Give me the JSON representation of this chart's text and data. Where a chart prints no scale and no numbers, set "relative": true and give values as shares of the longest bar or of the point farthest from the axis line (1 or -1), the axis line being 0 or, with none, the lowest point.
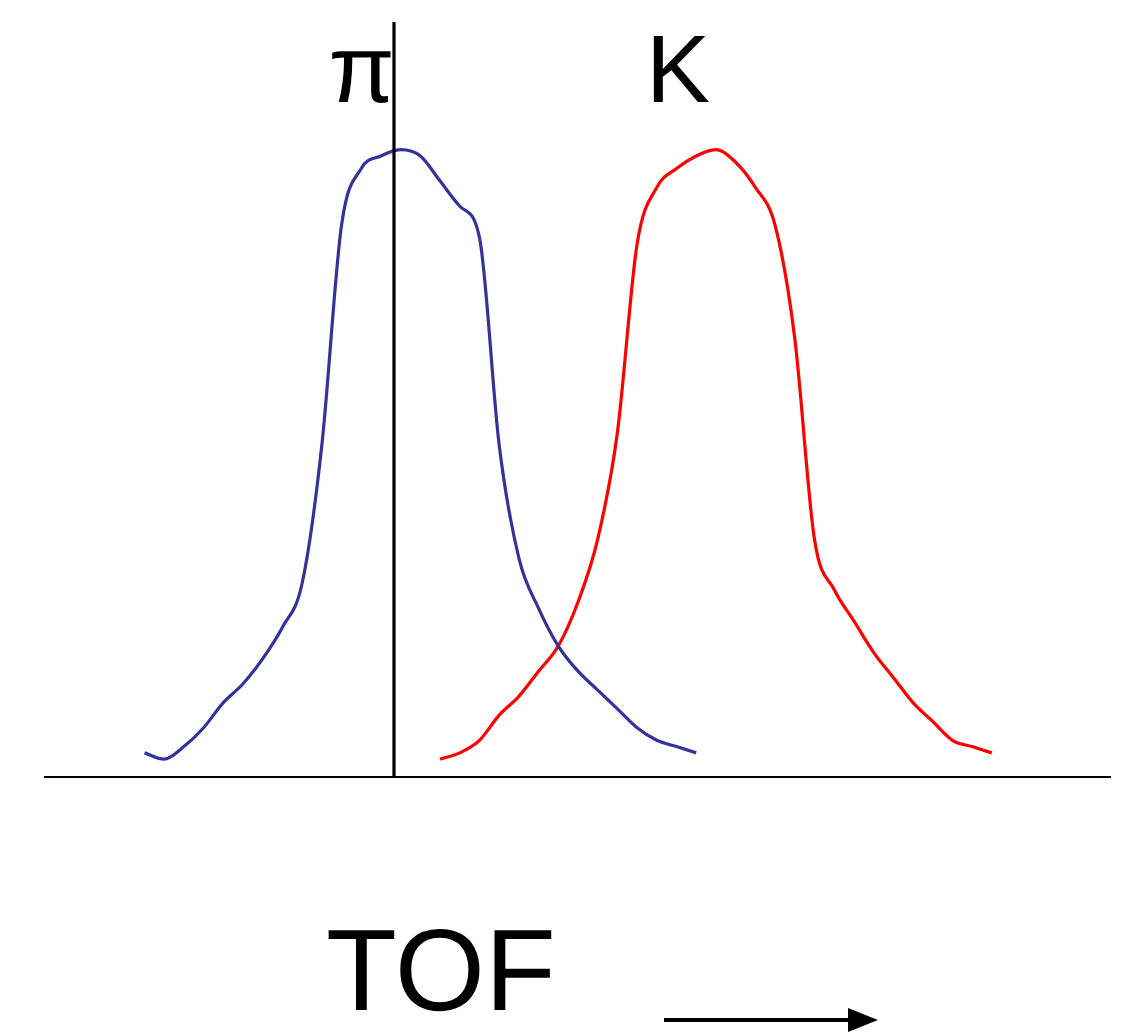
{
  "chart_data": {
    "type": "line",
    "relative": true,
    "xlabel": "TOF",
    "grid": false,
    "legend": false,
    "marker": "none",
    "line_style": "solid",
    "categories": [
      null,
      null,
      null,
      null,
      null,
      null,
      null,
      null,
      null,
      null,
      null,
      null,
      null,
      null,
      null,
      null,
      null,
      null,
      null,
      null,
      null,
      null,
      null,
      null,
      null,
      null,
      null,
      null,
      null,
      null,
      null,
      null,
      null,
      null,
      null,
      null,
      null,
      null,
      null,
      null,
      null,
      null,
      null,
      null,
      null,
      null,
      null,
      null,
      null,
      null,
      null,
      null,
      null,
      null,
      null
    ],
    "series": [
      {
        "name": "π",
        "color": "#333399",
        "values": [
          null,
          null,
          null,
          null,
          null,
          0.04,
          0.03,
          0.05,
          0.08,
          0.12,
          0.15,
          0.19,
          0.24,
          0.31,
          0.53,
          0.88,
          0.97,
          0.99,
          1.0,
          0.99,
          0.95,
          0.91,
          0.86,
          0.53,
          0.35,
          0.27,
          0.21,
          0.17,
          0.14,
          0.11,
          0.08,
          0.06,
          0.05,
          0.04,
          null,
          null,
          null,
          null,
          null,
          null,
          null,
          null,
          null,
          null,
          null,
          null,
          null,
          null,
          null,
          null,
          null,
          null,
          null,
          null,
          null
        ]
      },
      {
        "name": "K",
        "color": "#ff0000",
        "values": [
          null,
          null,
          null,
          null,
          null,
          null,
          null,
          null,
          null,
          null,
          null,
          null,
          null,
          null,
          null,
          null,
          null,
          null,
          null,
          null,
          0.03,
          0.04,
          0.06,
          0.1,
          0.13,
          0.17,
          0.21,
          0.28,
          0.38,
          0.55,
          0.85,
          0.94,
          0.97,
          0.99,
          1.0,
          0.98,
          0.94,
          0.88,
          0.7,
          0.38,
          0.3,
          0.25,
          0.2,
          0.16,
          0.12,
          0.09,
          0.06,
          0.05,
          0.04,
          null,
          null,
          null,
          null,
          null,
          null
        ]
      }
    ]
  }
}
